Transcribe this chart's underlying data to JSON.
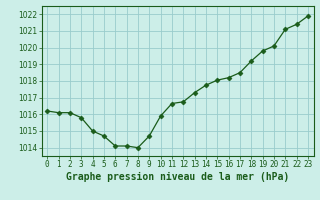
{
  "hours": [
    0,
    1,
    2,
    3,
    4,
    5,
    6,
    7,
    8,
    9,
    10,
    11,
    12,
    13,
    14,
    15,
    16,
    17,
    18,
    19,
    20,
    21,
    22,
    23
  ],
  "pressure": [
    1016.2,
    1016.1,
    1016.1,
    1015.8,
    1015.0,
    1014.7,
    1014.1,
    1014.1,
    1014.0,
    1014.7,
    1015.9,
    1016.65,
    1016.75,
    1017.3,
    1017.75,
    1018.05,
    1018.2,
    1018.5,
    1019.2,
    1019.8,
    1020.1,
    1021.1,
    1021.4,
    1021.9
  ],
  "ylim": [
    1013.5,
    1022.5
  ],
  "yticks": [
    1014,
    1015,
    1016,
    1017,
    1018,
    1019,
    1020,
    1021,
    1022
  ],
  "xlim": [
    -0.5,
    23.5
  ],
  "line_color": "#1a5c1a",
  "marker": "D",
  "marker_size": 2.5,
  "bg_color": "#cceee8",
  "grid_color": "#99cccc",
  "xlabel": "Graphe pression niveau de la mer (hPa)",
  "tick_fontsize": 5.5,
  "xlabel_fontsize": 7.0
}
